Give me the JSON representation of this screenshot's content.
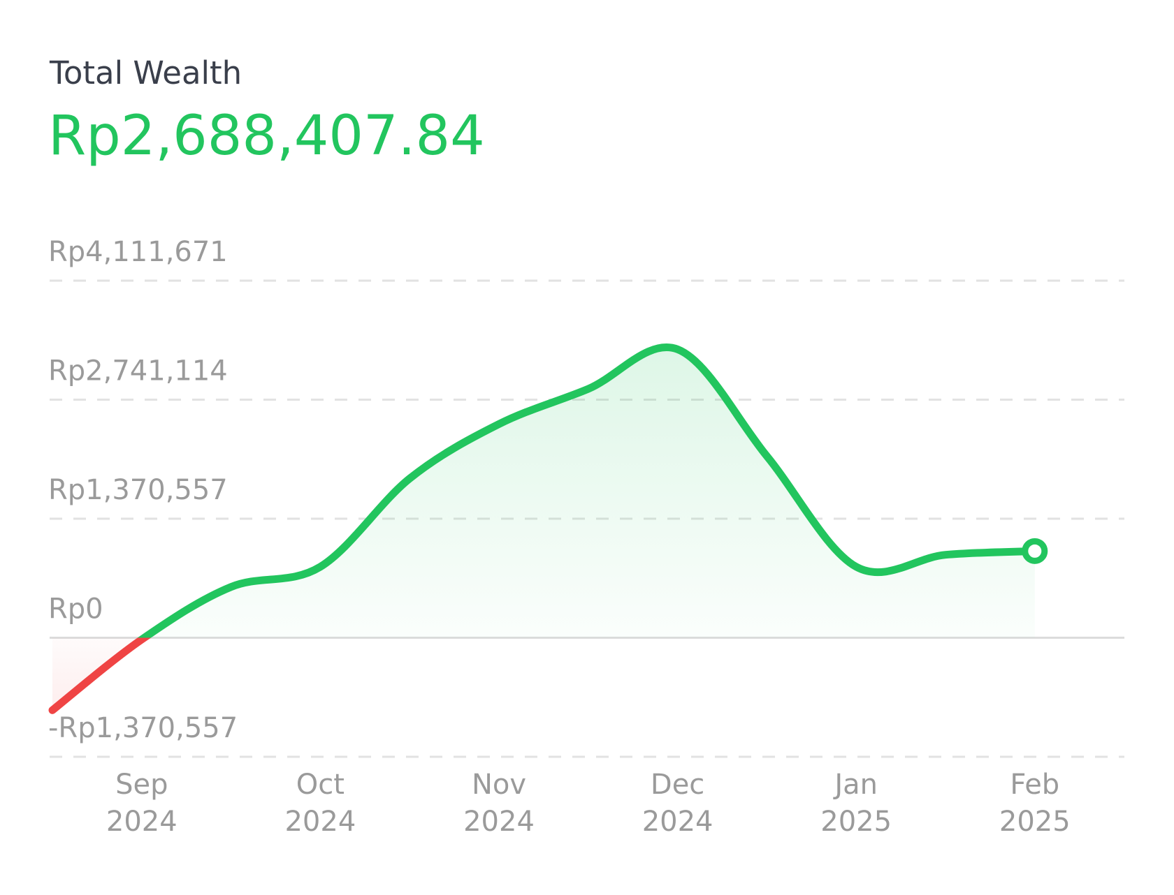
{
  "chart_data": {
    "type": "line",
    "title": "Total Wealth",
    "subtitle": "Rp2,688,407.84",
    "categories": [
      null,
      "Sep\n2024",
      null,
      "Oct\n2024",
      null,
      "Nov\n2024",
      null,
      "Dec\n2024",
      null,
      "Jan\n2025",
      null,
      "Feb\n2025"
    ],
    "values": [
      -834600,
      -20000,
      585000,
      817000,
      1833000,
      2460000,
      2865000,
      3321000,
      2091000,
      817000,
      955000,
      998000
    ],
    "color": "#22c55e",
    "negative_color": "#ef4444",
    "ylim": [
      -1370557,
      4111671
    ],
    "yticks": [
      {
        "value": -1370557,
        "label": "-Rp1,370,557"
      },
      {
        "value": 0,
        "label": "Rp0"
      },
      {
        "value": 1370557,
        "label": "Rp1,370,557"
      },
      {
        "value": 2741114,
        "label": "Rp2,741,114"
      },
      {
        "value": 4111671,
        "label": "Rp4,111,671"
      }
    ],
    "grid": true
  }
}
